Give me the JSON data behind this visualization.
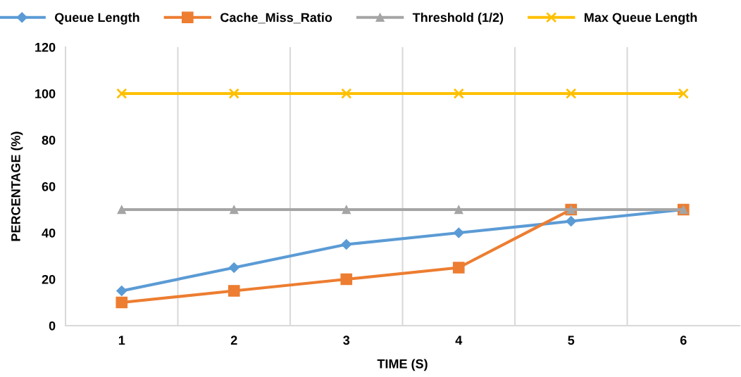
{
  "chart_data": {
    "type": "line",
    "xlabel": "TIME (S)",
    "ylabel": "PERCENTAGE (%)",
    "categories": [
      "1",
      "2",
      "3",
      "4",
      "5",
      "6"
    ],
    "series": [
      {
        "name": "Queue Length",
        "color": "#5b9bd5",
        "marker": "diamond",
        "values": [
          15,
          25,
          35,
          40,
          45,
          50
        ]
      },
      {
        "name": "Cache_Miss_Ratio",
        "color": "#ed7d31",
        "marker": "square",
        "values": [
          10,
          15,
          20,
          25,
          50,
          50
        ]
      },
      {
        "name": "Threshold (1/2)",
        "color": "#a5a5a5",
        "marker": "triangle",
        "values": [
          50,
          50,
          50,
          50,
          50,
          50
        ]
      },
      {
        "name": "Max Queue Length",
        "color": "#ffc000",
        "marker": "cross",
        "values": [
          100,
          100,
          100,
          100,
          100,
          100
        ]
      }
    ],
    "ylim": [
      0,
      120
    ],
    "yticks": [
      0,
      20,
      40,
      60,
      80,
      100,
      120
    ],
    "grid": "x",
    "legend": "top",
    "line_style": "solid"
  }
}
